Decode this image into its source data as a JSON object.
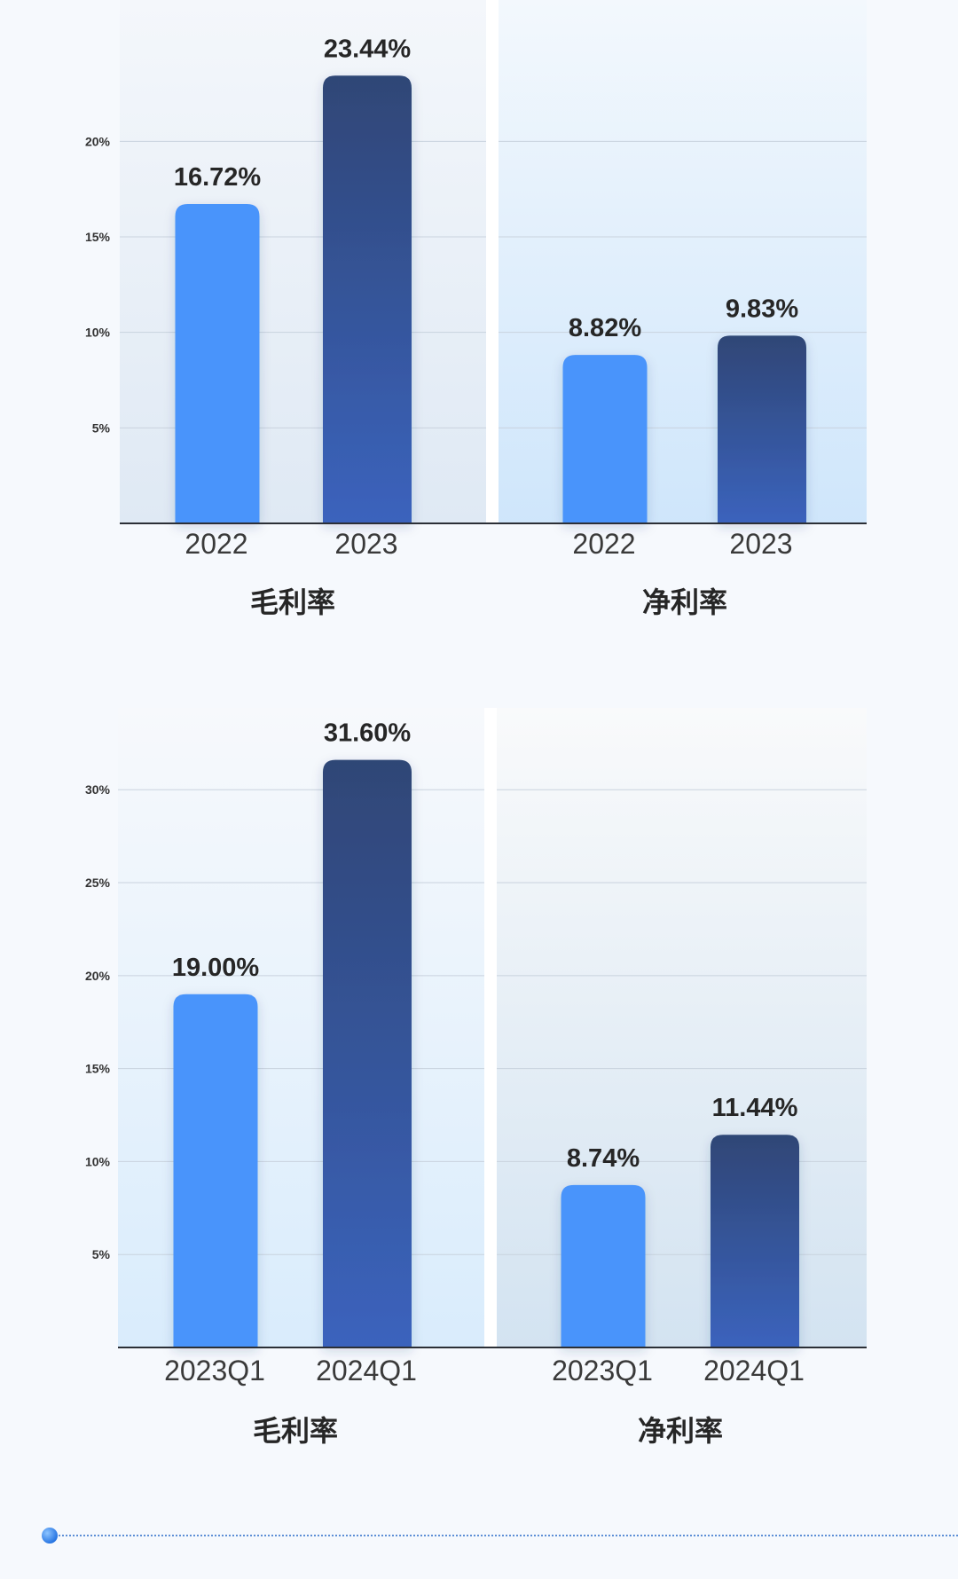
{
  "colors": {
    "series_light": "#4a94fb",
    "series_dark_top": "#2f4676",
    "series_dark_bottom": "#3b63bd",
    "text_dark": "#262626",
    "axis_text": "#333333"
  },
  "chart_data": [
    {
      "type": "bar",
      "groups": [
        {
          "name": "毛利率",
          "categories": [
            "2022",
            "2023"
          ],
          "values": [
            16.72,
            23.44
          ],
          "value_labels": [
            "16.72%",
            "23.44%"
          ]
        },
        {
          "name": "净利率",
          "categories": [
            "2022",
            "2023"
          ],
          "values": [
            8.82,
            9.83
          ],
          "value_labels": [
            "8.82%",
            "9.83%"
          ]
        }
      ],
      "yticks": [
        5,
        10,
        15,
        20
      ],
      "ytick_labels": [
        "5%",
        "10%",
        "15%",
        "20%"
      ],
      "ylim": [
        0,
        27.4
      ],
      "grid": true
    },
    {
      "type": "bar",
      "groups": [
        {
          "name": "毛利率",
          "categories": [
            "2023Q1",
            "2024Q1"
          ],
          "values": [
            19.0,
            31.6
          ],
          "value_labels": [
            "19.00%",
            "31.60%"
          ]
        },
        {
          "name": "净利率",
          "categories": [
            "2023Q1",
            "2024Q1"
          ],
          "values": [
            8.74,
            11.44
          ],
          "value_labels": [
            "8.74%",
            "11.44%"
          ]
        }
      ],
      "yticks": [
        5,
        10,
        15,
        20,
        25,
        30
      ],
      "ytick_labels": [
        "5%",
        "10%",
        "15%",
        "20%",
        "25%",
        "30%"
      ],
      "ylim": [
        0,
        34.4
      ],
      "grid": true
    }
  ]
}
